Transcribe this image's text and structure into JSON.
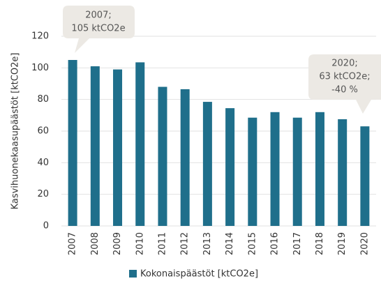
{
  "chart_data": {
    "type": "bar",
    "y_label": "Kasvihuonekaasupäästöt [ktCO2e]",
    "categories": [
      "2007",
      "2008",
      "2009",
      "2010",
      "2011",
      "2012",
      "2013",
      "2014",
      "2015",
      "2016",
      "2017",
      "2018",
      "2019",
      "2020"
    ],
    "series": [
      {
        "name": "Kokonaispäästöt [ktCO2e]",
        "color": "#1f6f8b",
        "values": [
          105,
          101,
          99,
          103.5,
          88,
          86.5,
          78.5,
          74.5,
          68.5,
          72,
          68.5,
          72,
          67.5,
          63
        ]
      }
    ],
    "ylim": [
      0,
      120
    ],
    "yticks": [
      0,
      20,
      40,
      60,
      80,
      100,
      120
    ],
    "grid": true,
    "annotations": [
      {
        "lines": [
          "2007;",
          "105 ktCO2e"
        ]
      },
      {
        "lines": [
          "2020;",
          "63 ktCO2e;",
          "-40 %"
        ]
      }
    ]
  }
}
